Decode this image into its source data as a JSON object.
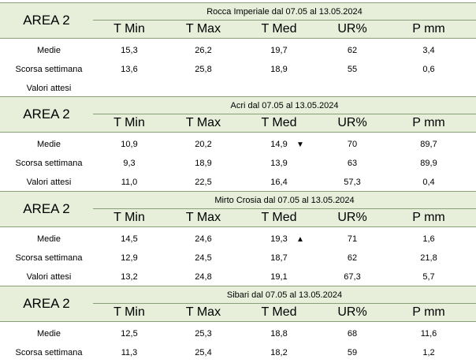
{
  "column_headers": [
    "T Min",
    "T Max",
    "T Med",
    "UR%",
    "P mm"
  ],
  "row_labels": [
    "Medie",
    "Scorsa settimana",
    "Valori attesi"
  ],
  "blocks": [
    {
      "area": "AREA 2",
      "title": "Rocca Imperiale  dal 07.05 al 13.05.2024",
      "rows": [
        [
          "15,3",
          "26,2",
          "19,7",
          "62",
          "3,4"
        ],
        [
          "13,6",
          "25,8",
          "18,9",
          "55",
          "0,6"
        ],
        [
          "",
          "",
          "",
          "",
          ""
        ]
      ],
      "trend": ""
    },
    {
      "area": "AREA 2",
      "title": "Acri dal 07.05 al 13.05.2024",
      "rows": [
        [
          "10,9",
          "20,2",
          "14,9",
          "70",
          "89,7"
        ],
        [
          "9,3",
          "18,9",
          "13,9",
          "63",
          "89,9"
        ],
        [
          "11,0",
          "22,5",
          "16,4",
          "57,3",
          "0,4"
        ]
      ],
      "trend": "▼"
    },
    {
      "area": "AREA 2",
      "title": "Mirto Crosia dal 07.05 al 13.05.2024",
      "rows": [
        [
          "14,5",
          "24,6",
          "19,3",
          "71",
          "1,6"
        ],
        [
          "12,9",
          "24,5",
          "18,7",
          "62",
          "21,8"
        ],
        [
          "13,2",
          "24,8",
          "19,1",
          "67,3",
          "5,7"
        ]
      ],
      "trend": "▲"
    },
    {
      "area": "AREA 2",
      "title": "Sibari dal 07.05 al 13.05.2024",
      "rows": [
        [
          "12,5",
          "25,3",
          "18,8",
          "68",
          "11,6"
        ],
        [
          "11,3",
          "25,4",
          "18,2",
          "59",
          "1,2"
        ]
      ],
      "trend": ""
    }
  ]
}
